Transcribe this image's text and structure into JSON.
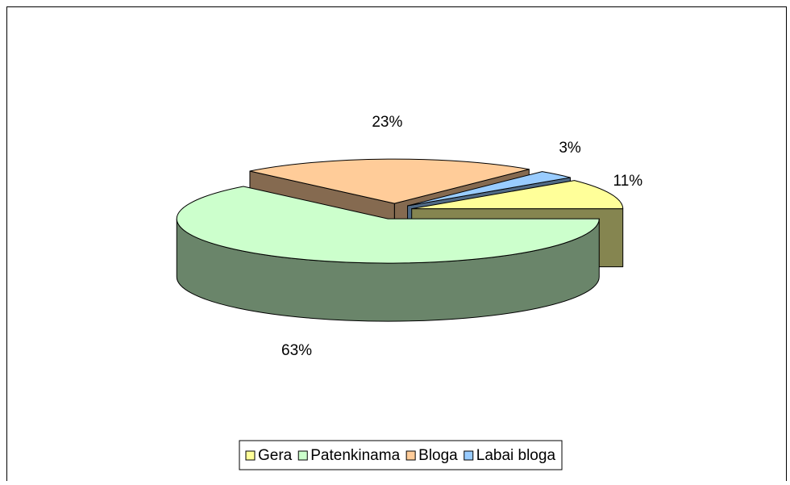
{
  "chart_data": {
    "type": "pie3d",
    "categories": [
      "Gera",
      "Patenkinama",
      "Bloga",
      "Labai bloga"
    ],
    "values": [
      11,
      63,
      23,
      3
    ],
    "value_labels": [
      "11%",
      "63%",
      "23%",
      "3%"
    ],
    "colors": [
      "#ffff99",
      "#ccffcc",
      "#ffcc99",
      "#99ccff"
    ],
    "legend": "bottom"
  }
}
